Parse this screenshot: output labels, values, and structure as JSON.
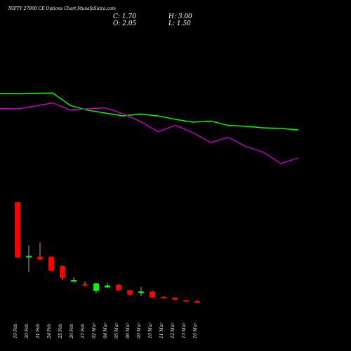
{
  "title": "NIFTY 27000  CE Options  Chart MunafaSutra.com",
  "ohlc": {
    "c": "C: 1.70",
    "h": "H: 3.00",
    "o": "O: 2.05",
    "l": "L: 1.50"
  },
  "colors": {
    "up": "#00ff00",
    "down": "#ff0000",
    "bg": "#000000",
    "ma_short": "#00ff00",
    "ma_long": "#cc00cc",
    "wick": "#aaaaaa"
  },
  "chart_data": {
    "type": "candlestick",
    "categories": [
      "19 Feb",
      "20 Feb",
      "21 Feb",
      "24 Feb",
      "25 Feb",
      "26 Feb",
      "27 Feb",
      "02 Mar",
      "04 Mar",
      "05 Mar",
      "06 Mar",
      "09 Mar",
      "10 Mar",
      "11 Mar",
      "12 Mar",
      "13 Mar",
      "16 Mar"
    ],
    "candles": [
      {
        "o": 56.0,
        "h": 56.0,
        "l": 14.5,
        "c": 15.0
      },
      {
        "o": 15.0,
        "h": 24.0,
        "l": 4.0,
        "c": 16.0
      },
      {
        "o": 15.5,
        "h": 26.0,
        "l": 13.0,
        "c": 13.5
      },
      {
        "o": 15.5,
        "h": 15.5,
        "l": 4.5,
        "c": 5.0
      },
      {
        "o": 8.5,
        "h": 9.0,
        "l": -2.0,
        "c": -0.5
      },
      {
        "o": -2.5,
        "h": 0.0,
        "l": -3.0,
        "c": -2.0
      },
      {
        "o": -5.0,
        "h": -3.0,
        "l": -6.5,
        "c": -5.5
      },
      {
        "o": -10.0,
        "h": -4.0,
        "l": -12.0,
        "c": -4.5
      },
      {
        "o": -7.5,
        "h": -4.0,
        "l": -8.0,
        "c": -6.0
      },
      {
        "o": -5.5,
        "h": -5.0,
        "l": -10.0,
        "c": -9.5
      },
      {
        "o": -9.5,
        "h": -9.5,
        "l": -13.5,
        "c": -12.5
      },
      {
        "o": -11.5,
        "h": -7.0,
        "l": -14.0,
        "c": -10.5
      },
      {
        "o": -10.5,
        "h": -10.0,
        "l": -15.0,
        "c": -15.0
      },
      {
        "o": -14.5,
        "h": -14.0,
        "l": -15.5,
        "c": -15.3
      },
      {
        "o": -15.0,
        "h": -15.0,
        "l": -17.0,
        "c": -16.5
      },
      {
        "o": -17.0,
        "h": -17.0,
        "l": -17.8,
        "c": -17.6
      },
      {
        "o": -17.8,
        "h": -17.0,
        "l": -19.0,
        "c": -18.6
      }
    ],
    "series": [
      {
        "x": [
          0,
          30,
          75,
          100,
          125,
          175,
          200,
          225,
          250,
          275,
          300,
          325,
          350,
          375,
          400,
          425
        ],
        "y": [
          133.5,
          133.5,
          132.5,
          150,
          157,
          165,
          162.5,
          165,
          170,
          174,
          172.5,
          178.5,
          180,
          182,
          183,
          185
        ]
      },
      {
        "x": [
          0,
          25,
          50,
          75,
          100,
          125,
          150,
          175,
          200,
          225,
          250,
          275,
          300,
          325,
          350,
          375,
          400,
          425
        ],
        "y": [
          154.5,
          155,
          151,
          146.5,
          156.5,
          155,
          153.5,
          162,
          173,
          187.5,
          178.5,
          189,
          203,
          195.5,
          208.5,
          216.5,
          233,
          225
        ]
      }
    ]
  }
}
